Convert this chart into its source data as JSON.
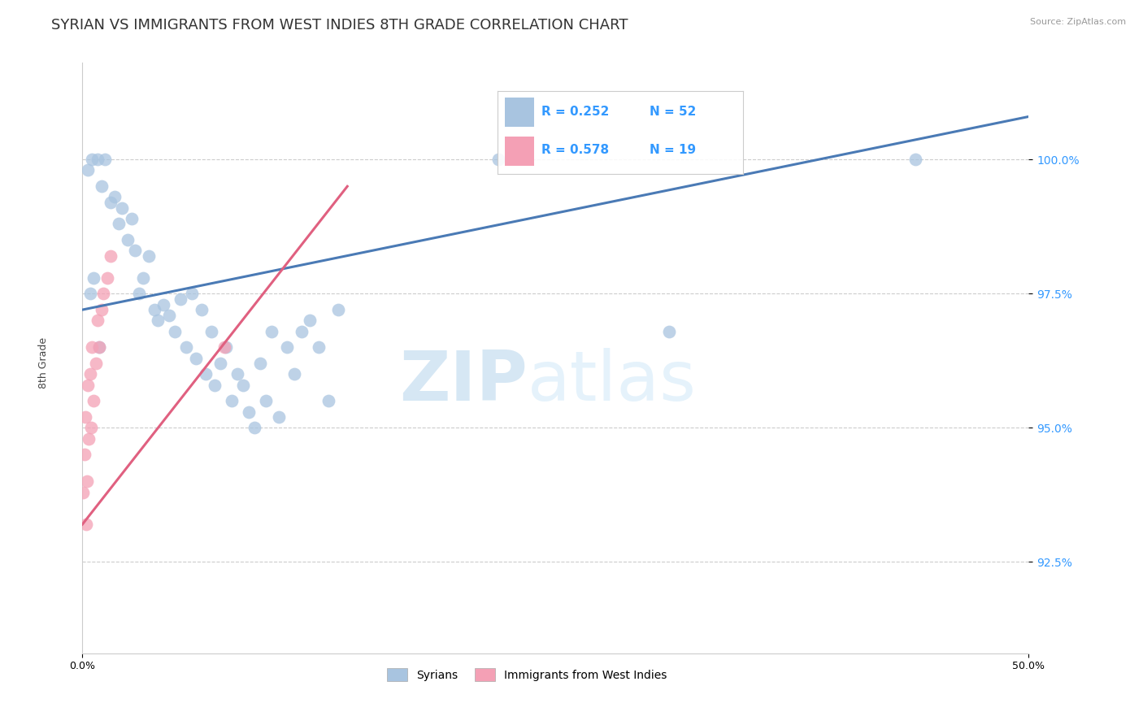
{
  "title": "SYRIAN VS IMMIGRANTS FROM WEST INDIES 8TH GRADE CORRELATION CHART",
  "source": "Source: ZipAtlas.com",
  "ylabel": "8th Grade",
  "y_ticks": [
    92.5,
    95.0,
    97.5,
    100.0
  ],
  "y_tick_labels": [
    "92.5%",
    "95.0%",
    "97.5%",
    "100.0%"
  ],
  "x_min": 0.0,
  "x_max": 50.0,
  "y_min": 90.8,
  "y_max": 101.8,
  "legend_labels": [
    "Syrians",
    "Immigrants from West Indies"
  ],
  "R_blue": 0.252,
  "N_blue": 52,
  "R_pink": 0.578,
  "N_pink": 19,
  "blue_color": "#a8c4e0",
  "pink_color": "#f4a0b5",
  "blue_line_color": "#4a7ab5",
  "pink_line_color": "#e06080",
  "watermark_ZIP": "ZIP",
  "watermark_atlas": "atlas",
  "title_fontsize": 13,
  "axis_label_fontsize": 9,
  "tick_fontsize": 9,
  "blue_scatter_x": [
    0.3,
    0.5,
    0.8,
    1.0,
    1.2,
    1.5,
    1.7,
    1.9,
    2.1,
    2.4,
    2.6,
    2.8,
    3.0,
    3.2,
    3.5,
    3.8,
    4.0,
    4.3,
    4.6,
    4.9,
    5.2,
    5.5,
    5.8,
    6.0,
    6.3,
    6.5,
    6.8,
    7.0,
    7.3,
    7.6,
    7.9,
    8.2,
    8.5,
    8.8,
    9.1,
    9.4,
    9.7,
    10.0,
    10.4,
    10.8,
    11.2,
    11.6,
    12.0,
    12.5,
    13.0,
    13.5,
    0.4,
    0.6,
    0.9,
    22.0,
    31.0,
    44.0
  ],
  "blue_scatter_y": [
    99.8,
    100.0,
    100.0,
    99.5,
    100.0,
    99.2,
    99.3,
    98.8,
    99.1,
    98.5,
    98.9,
    98.3,
    97.5,
    97.8,
    98.2,
    97.2,
    97.0,
    97.3,
    97.1,
    96.8,
    97.4,
    96.5,
    97.5,
    96.3,
    97.2,
    96.0,
    96.8,
    95.8,
    96.2,
    96.5,
    95.5,
    96.0,
    95.8,
    95.3,
    95.0,
    96.2,
    95.5,
    96.8,
    95.2,
    96.5,
    96.0,
    96.8,
    97.0,
    96.5,
    95.5,
    97.2,
    97.5,
    97.8,
    96.5,
    100.0,
    96.8,
    100.0
  ],
  "pink_scatter_x": [
    0.05,
    0.1,
    0.15,
    0.2,
    0.25,
    0.3,
    0.35,
    0.4,
    0.45,
    0.5,
    0.6,
    0.7,
    0.8,
    0.9,
    1.0,
    1.1,
    1.3,
    1.5,
    7.5
  ],
  "pink_scatter_y": [
    93.8,
    94.5,
    95.2,
    93.2,
    94.0,
    95.8,
    94.8,
    96.0,
    95.0,
    96.5,
    95.5,
    96.2,
    97.0,
    96.5,
    97.2,
    97.5,
    97.8,
    98.2,
    96.5
  ],
  "blue_line_x0": 0.0,
  "blue_line_x1": 50.0,
  "blue_line_y0": 97.2,
  "blue_line_y1": 100.8,
  "pink_line_x0": 0.0,
  "pink_line_x1": 14.0,
  "pink_line_y0": 93.2,
  "pink_line_y1": 99.5
}
